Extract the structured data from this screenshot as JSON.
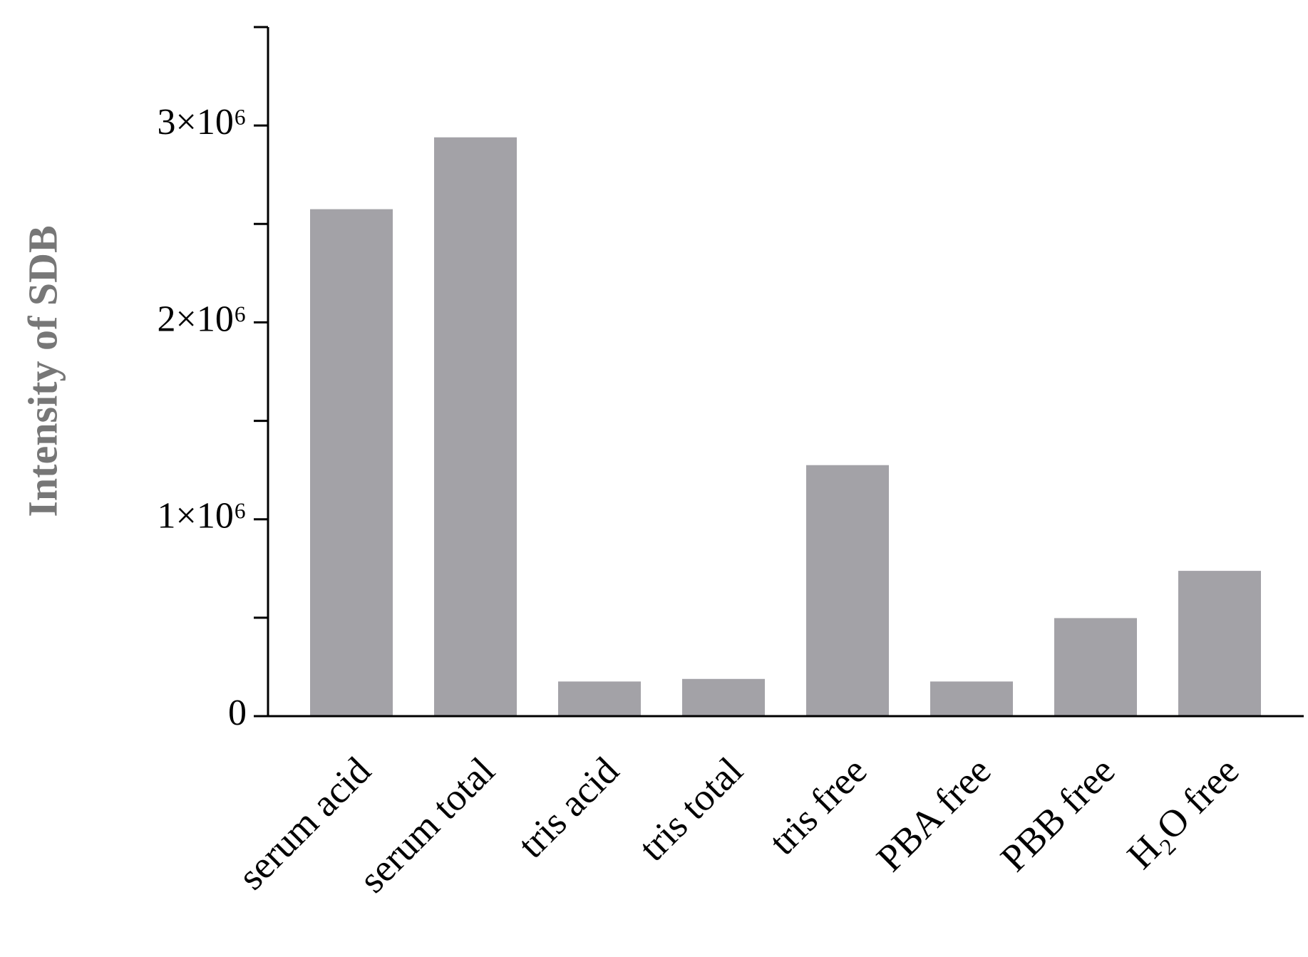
{
  "chart_data": {
    "type": "bar",
    "y_label": "Intensity of SDB",
    "categories": [
      "serum acid",
      "serum total",
      "tris acid",
      "tris total",
      "tris free",
      "PBA free",
      "PBB free",
      "H₂O free"
    ],
    "values": [
      2575000,
      2940000,
      176000,
      189000,
      1275000,
      176000,
      498000,
      738000
    ],
    "color": "#a3a2a7",
    "ylim": [
      0,
      3500000
    ],
    "yticks": [
      0,
      {
        "value": 1000000,
        "label": "1×10⁶"
      },
      {
        "value": 2000000,
        "label": "2×10⁶"
      },
      {
        "value": 3000000,
        "label": "3×10⁶"
      }
    ],
    "yminor_ticks": [
      500000,
      1500000,
      2500000,
      3500000
    ]
  }
}
